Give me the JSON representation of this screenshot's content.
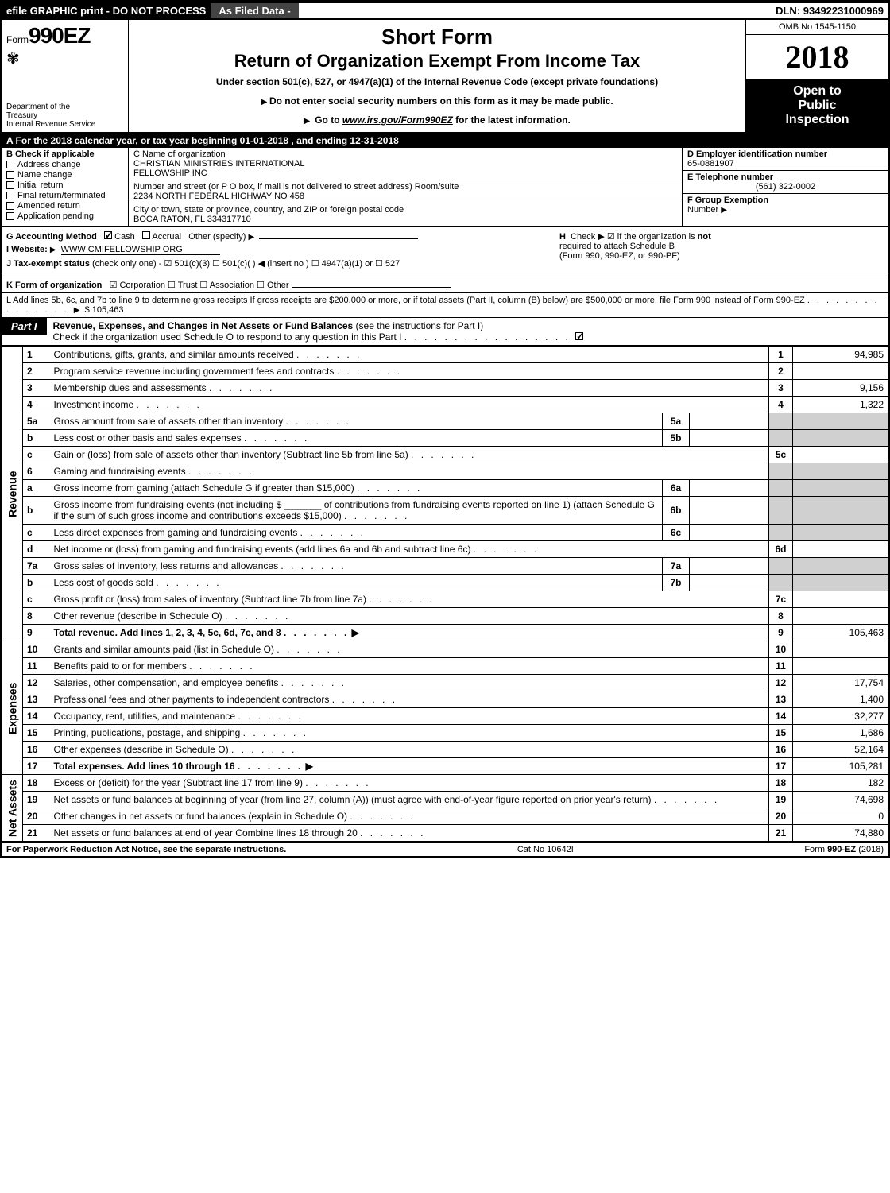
{
  "topbar": {
    "left": "efile GRAPHIC print - DO NOT PROCESS",
    "mid": "As Filed Data -",
    "dln_label": "DLN:",
    "dln": "93492231000969"
  },
  "header": {
    "form_prefix": "Form",
    "form_number": "990EZ",
    "dept1": "Department of the",
    "dept2": "Treasury",
    "dept3": "Internal Revenue Service",
    "short_form": "Short Form",
    "title": "Return of Organization Exempt From Income Tax",
    "subtitle": "Under section 501(c), 527, or 4947(a)(1) of the Internal Revenue Code (except private foundations)",
    "warn": "Do not enter social security numbers on this form as it may be made public.",
    "goto_pre": "Go to ",
    "goto_link": "www.irs.gov/Form990EZ",
    "goto_post": " for the latest information.",
    "omb": "OMB No 1545-1150",
    "year": "2018",
    "open1": "Open to",
    "open2": "Public",
    "open3": "Inspection"
  },
  "rowA": {
    "text_pre": "A  For the 2018 calendar year, or tax year beginning ",
    "begin": "01-01-2018",
    "mid": ", and ending ",
    "end": "12-31-2018"
  },
  "colB": {
    "header": "B  Check if applicable",
    "items": [
      "Address change",
      "Name change",
      "Initial return",
      "Final return/terminated",
      "Amended return",
      "Application pending"
    ]
  },
  "colC": {
    "name_label": "C Name of organization",
    "name1": "CHRISTIAN MINISTRIES INTERNATIONAL",
    "name2": "FELLOWSHIP INC",
    "addr_label": "Number and street (or P O box, if mail is not delivered to street address)  Room/suite",
    "addr": "2234 NORTH FEDERAL HIGHWAY NO 458",
    "city_label": "City or town, state or province, country, and ZIP or foreign postal code",
    "city": "BOCA RATON, FL  334317710"
  },
  "colDEF": {
    "d_label": "D Employer identification number",
    "d_val": "65-0881907",
    "e_label": "E Telephone number",
    "e_val": "(561) 322-0002",
    "f_label": "F Group Exemption",
    "f_label2": "Number"
  },
  "sectionG": {
    "g_label": "G Accounting Method",
    "g_cash": "Cash",
    "g_accrual": "Accrual",
    "g_other": "Other (specify)",
    "i_label": "I Website:",
    "i_val": "WWW CMIFELLOWSHIP ORG",
    "j_label": "J Tax-exempt status",
    "j_text": "(check only one) - ☑ 501(c)(3)   ☐ 501(c)(  ) ◀ (insert no ) ☐ 4947(a)(1) or ☐ 527",
    "h_label": "H",
    "h_text1": "Check ▶  ☑  if the organization is ",
    "h_not": "not",
    "h_text2": "required to attach Schedule B",
    "h_text3": "(Form 990, 990-EZ, or 990-PF)"
  },
  "kRow": {
    "label": "K Form of organization",
    "text": "☑ Corporation  ☐ Trust  ☐ Association  ☐ Other"
  },
  "lRow": {
    "text": "L Add lines 5b, 6c, and 7b to line 9 to determine gross receipts  If gross receipts are $200,000 or more, or if total assets (Part II, column (B) below) are $500,000 or more, file Form 990 instead of Form 990-EZ",
    "amount": "$ 105,463"
  },
  "part1": {
    "tab": "Part I",
    "title": "Revenue, Expenses, and Changes in Net Assets or Fund Balances",
    "title_paren": "(see the instructions for Part I)",
    "check_text": "Check if the organization used Schedule O to respond to any question in this Part I"
  },
  "sideLabels": {
    "revenue": "Revenue",
    "expenses": "Expenses",
    "netassets": "Net Assets"
  },
  "lines": [
    {
      "n": "1",
      "desc": "Contributions, gifts, grants, and similar amounts received",
      "ref": "1",
      "amt": "94,985"
    },
    {
      "n": "2",
      "desc": "Program service revenue including government fees and contracts",
      "ref": "2",
      "amt": ""
    },
    {
      "n": "3",
      "desc": "Membership dues and assessments",
      "ref": "3",
      "amt": "9,156"
    },
    {
      "n": "4",
      "desc": "Investment income",
      "ref": "4",
      "amt": "1,322"
    },
    {
      "n": "5a",
      "desc": "Gross amount from sale of assets other than inventory",
      "inner": "5a",
      "ref": "",
      "amt": ""
    },
    {
      "n": "b",
      "desc": "Less cost or other basis and sales expenses",
      "inner": "5b",
      "ref": "",
      "amt": ""
    },
    {
      "n": "c",
      "desc": "Gain or (loss) from sale of assets other than inventory (Subtract line 5b from line 5a)",
      "ref": "5c",
      "amt": ""
    },
    {
      "n": "6",
      "desc": "Gaming and fundraising events",
      "ref": "",
      "amt": ""
    },
    {
      "n": "a",
      "desc": "Gross income from gaming (attach Schedule G if greater than $15,000)",
      "inner": "6a",
      "ref": "",
      "amt": ""
    },
    {
      "n": "b",
      "desc": "Gross income from fundraising events (not including $ _______ of contributions from fundraising events reported on line 1) (attach Schedule G if the sum of such gross income and contributions exceeds $15,000)",
      "inner": "6b",
      "ref": "",
      "amt": ""
    },
    {
      "n": "c",
      "desc": "Less direct expenses from gaming and fundraising events",
      "inner": "6c",
      "ref": "",
      "amt": ""
    },
    {
      "n": "d",
      "desc": "Net income or (loss) from gaming and fundraising events (add lines 6a and 6b and subtract line 6c)",
      "ref": "6d",
      "amt": ""
    },
    {
      "n": "7a",
      "desc": "Gross sales of inventory, less returns and allowances",
      "inner": "7a",
      "ref": "",
      "amt": ""
    },
    {
      "n": "b",
      "desc": "Less cost of goods sold",
      "inner": "7b",
      "ref": "",
      "amt": ""
    },
    {
      "n": "c",
      "desc": "Gross profit or (loss) from sales of inventory (Subtract line 7b from line 7a)",
      "ref": "7c",
      "amt": ""
    },
    {
      "n": "8",
      "desc": "Other revenue (describe in Schedule O)",
      "ref": "8",
      "amt": ""
    },
    {
      "n": "9",
      "desc": "Total revenue. Add lines 1, 2, 3, 4, 5c, 6d, 7c, and 8",
      "ref": "9",
      "amt": "105,463",
      "total": true,
      "arrow": true
    },
    {
      "n": "10",
      "desc": "Grants and similar amounts paid (list in Schedule O)",
      "ref": "10",
      "amt": ""
    },
    {
      "n": "11",
      "desc": "Benefits paid to or for members",
      "ref": "11",
      "amt": ""
    },
    {
      "n": "12",
      "desc": "Salaries, other compensation, and employee benefits",
      "ref": "12",
      "amt": "17,754"
    },
    {
      "n": "13",
      "desc": "Professional fees and other payments to independent contractors",
      "ref": "13",
      "amt": "1,400"
    },
    {
      "n": "14",
      "desc": "Occupancy, rent, utilities, and maintenance",
      "ref": "14",
      "amt": "32,277"
    },
    {
      "n": "15",
      "desc": "Printing, publications, postage, and shipping",
      "ref": "15",
      "amt": "1,686"
    },
    {
      "n": "16",
      "desc": "Other expenses (describe in Schedule O)",
      "ref": "16",
      "amt": "52,164"
    },
    {
      "n": "17",
      "desc": "Total expenses. Add lines 10 through 16",
      "ref": "17",
      "amt": "105,281",
      "total": true,
      "arrow": true
    },
    {
      "n": "18",
      "desc": "Excess or (deficit) for the year (Subtract line 17 from line 9)",
      "ref": "18",
      "amt": "182"
    },
    {
      "n": "19",
      "desc": "Net assets or fund balances at beginning of year (from line 27, column (A)) (must agree with end-of-year figure reported on prior year's return)",
      "ref": "19",
      "amt": "74,698"
    },
    {
      "n": "20",
      "desc": "Other changes in net assets or fund balances (explain in Schedule O)",
      "ref": "20",
      "amt": "0"
    },
    {
      "n": "21",
      "desc": "Net assets or fund balances at end of year  Combine lines 18 through 20",
      "ref": "21",
      "amt": "74,880"
    }
  ],
  "footer": {
    "left": "For Paperwork Reduction Act Notice, see the separate instructions.",
    "mid": "Cat No 10642I",
    "right": "Form 990-EZ (2018)"
  },
  "colors": {
    "black": "#000000",
    "white": "#ffffff",
    "grey_cell": "#d0d0d0",
    "dark_strip": "#444444"
  }
}
